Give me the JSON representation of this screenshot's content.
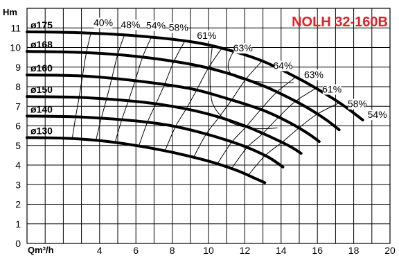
{
  "chart_data": {
    "type": "line",
    "title": "NOLH 32-160B",
    "title_color": "#e41e26",
    "xlabel": "Qm³/h",
    "ylabel": "Hm",
    "xlim": [
      0,
      20
    ],
    "ylim": [
      0,
      12
    ],
    "x_ticks": [
      "4",
      "6",
      "8",
      "10",
      "12",
      "14",
      "16",
      "18",
      "20"
    ],
    "y_ticks": [
      "0",
      "1",
      "2",
      "3",
      "4",
      "5",
      "6",
      "7",
      "8",
      "9",
      "10",
      "11"
    ],
    "grid": true,
    "series": [
      {
        "name": "ø175",
        "x": [
          0,
          3,
          6,
          9,
          11,
          13,
          15,
          16.5,
          17.5,
          18.5
        ],
        "y": [
          10.8,
          10.75,
          10.6,
          10.3,
          9.9,
          9.3,
          8.4,
          7.6,
          7.0,
          6.3
        ]
      },
      {
        "name": "ø168",
        "x": [
          0,
          3,
          6,
          9,
          11,
          13,
          14.5,
          15.5,
          16.5,
          17.2
        ],
        "y": [
          9.8,
          9.75,
          9.55,
          9.15,
          8.7,
          8.05,
          7.4,
          6.9,
          6.3,
          5.8
        ]
      },
      {
        "name": "ø160",
        "x": [
          0,
          3,
          6,
          9,
          11,
          13,
          14.5,
          15.5,
          16.1
        ],
        "y": [
          8.6,
          8.55,
          8.3,
          7.9,
          7.4,
          6.8,
          6.15,
          5.6,
          5.2
        ]
      },
      {
        "name": "ø150",
        "x": [
          0,
          3,
          6,
          8,
          10,
          12,
          13.5,
          14.5,
          15.1
        ],
        "y": [
          7.5,
          7.45,
          7.25,
          7.0,
          6.6,
          6.0,
          5.4,
          4.95,
          4.6
        ]
      },
      {
        "name": "ø140",
        "x": [
          0,
          3,
          6,
          8,
          10,
          12,
          13.3,
          14.1
        ],
        "y": [
          6.5,
          6.45,
          6.25,
          6.0,
          5.55,
          4.95,
          4.4,
          3.9
        ]
      },
      {
        "name": "ø130",
        "x": [
          0,
          2,
          4,
          6,
          8,
          10,
          11.5,
          12.5,
          13.1
        ],
        "y": [
          5.4,
          5.37,
          5.25,
          5.0,
          4.65,
          4.2,
          3.75,
          3.35,
          3.1
        ]
      }
    ],
    "efficiency_labels": [
      {
        "label": "40%",
        "x": 4.2,
        "y": 11.1
      },
      {
        "label": "48%",
        "x": 5.7,
        "y": 11.0
      },
      {
        "label": "54%",
        "x": 7.1,
        "y": 10.95
      },
      {
        "label": "58%",
        "x": 8.35,
        "y": 10.85
      },
      {
        "label": "61%",
        "x": 9.9,
        "y": 10.45
      },
      {
        "label": "63%",
        "x": 11.9,
        "y": 9.8
      },
      {
        "label": "64%",
        "x": 14.1,
        "y": 8.9
      },
      {
        "label": "63%",
        "x": 15.8,
        "y": 8.45
      },
      {
        "label": "61%",
        "x": 16.8,
        "y": 7.7
      },
      {
        "label": "58%",
        "x": 18.2,
        "y": 6.95
      },
      {
        "label": "54%",
        "x": 19.3,
        "y": 6.4
      }
    ]
  }
}
